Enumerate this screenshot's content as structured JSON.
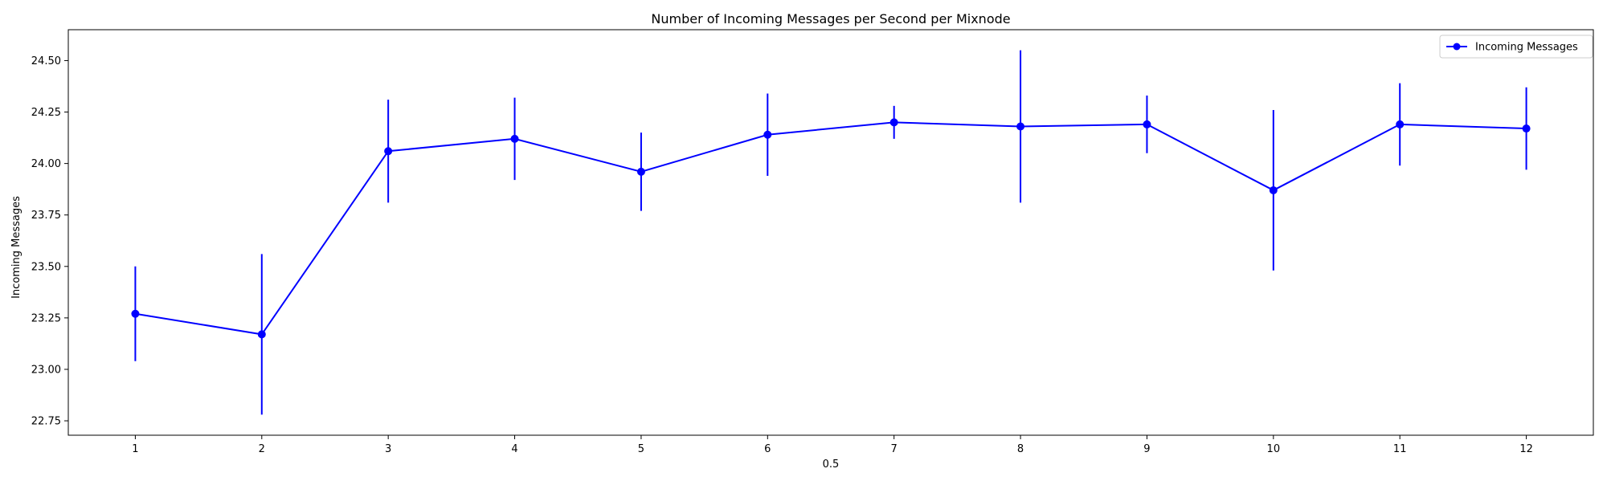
{
  "chart_data": {
    "type": "line",
    "title": "Number of Incoming Messages per Second per Mixnode",
    "xlabel": "0.5",
    "ylabel": "Incoming Messages",
    "x": [
      1,
      2,
      3,
      4,
      5,
      6,
      7,
      8,
      9,
      10,
      11,
      12
    ],
    "xlim": [
      0.47,
      12.53
    ],
    "ylim": [
      22.68,
      24.65
    ],
    "x_ticks": [
      1,
      2,
      3,
      4,
      5,
      6,
      7,
      8,
      9,
      10,
      11,
      12
    ],
    "y_ticks": [
      22.75,
      23.0,
      23.25,
      23.5,
      23.75,
      24.0,
      24.25,
      24.5
    ],
    "y_tick_labels": [
      "22.75",
      "23.00",
      "23.25",
      "23.50",
      "23.75",
      "24.00",
      "24.25",
      "24.50"
    ],
    "grid": false,
    "legend_position": "top-right",
    "series": [
      {
        "name": "Incoming Messages",
        "color": "#0000ff",
        "marker": "circle",
        "values": [
          23.27,
          23.17,
          24.06,
          24.12,
          23.96,
          24.14,
          24.2,
          24.18,
          24.19,
          23.87,
          24.19,
          24.17
        ],
        "error": [
          0.23,
          0.39,
          0.25,
          0.2,
          0.19,
          0.2,
          0.08,
          0.37,
          0.14,
          0.39,
          0.2,
          0.2
        ]
      }
    ]
  }
}
